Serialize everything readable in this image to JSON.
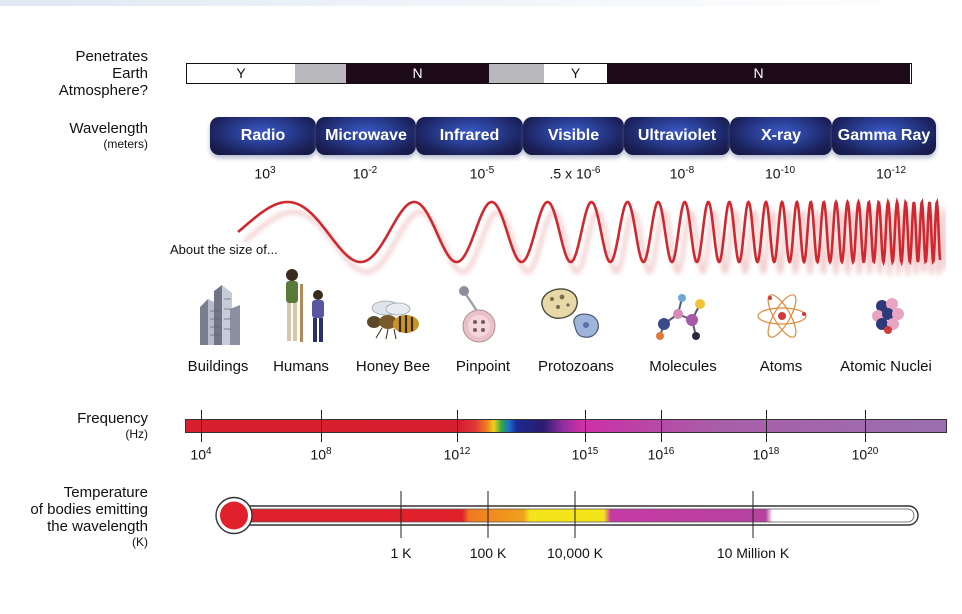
{
  "atmosphere": {
    "label_lines": [
      "Penetrates",
      "Earth",
      "Atmosphere?"
    ],
    "segments": [
      {
        "text": "Y",
        "kind": "y"
      },
      {
        "text": "",
        "kind": "g"
      },
      {
        "text": "N",
        "kind": "n"
      },
      {
        "text": "",
        "kind": "g"
      },
      {
        "text": "Y",
        "kind": "y"
      },
      {
        "text": "N",
        "kind": "n"
      }
    ]
  },
  "wavelength": {
    "label": "Wavelength",
    "unit": "(meters)",
    "bands": [
      "Radio",
      "Microwave",
      "Infrared",
      "Visible",
      "Ultraviolet",
      "X-ray",
      "Gamma Ray"
    ],
    "values": [
      {
        "base": "10",
        "exp": "3"
      },
      {
        "base": "10",
        "exp": "-2"
      },
      {
        "base": "10",
        "exp": "-5"
      },
      {
        "base": ".5 x 10",
        "exp": "-6"
      },
      {
        "base": "10",
        "exp": "-8"
      },
      {
        "base": "10",
        "exp": "-10"
      },
      {
        "base": "10",
        "exp": "-12"
      }
    ]
  },
  "size": {
    "note": "About the size of...",
    "objects": [
      "Buildings",
      "Humans",
      "Honey Bee",
      "Pinpoint",
      "Protozoans",
      "Molecules",
      "Atoms",
      "Atomic Nuclei"
    ],
    "icons": [
      "buildings-icon",
      "humans-icon",
      "honey-bee-icon",
      "pinpoint-icon",
      "protozoans-icon",
      "molecules-icon",
      "atoms-icon",
      "atomic-nuclei-icon"
    ]
  },
  "frequency": {
    "label": "Frequency",
    "unit": "(Hz)",
    "ticks": [
      {
        "base": "10",
        "exp": "4"
      },
      {
        "base": "10",
        "exp": "8"
      },
      {
        "base": "10",
        "exp": "12"
      },
      {
        "base": "10",
        "exp": "15"
      },
      {
        "base": "10",
        "exp": "16"
      },
      {
        "base": "10",
        "exp": "18"
      },
      {
        "base": "10",
        "exp": "20"
      }
    ]
  },
  "temperature": {
    "label_lines": [
      "Temperature",
      "of bodies emitting",
      "the wavelength"
    ],
    "unit": "(K)",
    "ticks": [
      "1 K",
      "100 K",
      "10,000 K",
      "10 Million K"
    ]
  },
  "colors": {
    "wave": "#d0282e",
    "band_dark": "#141639",
    "band_light": "#3a59c6"
  }
}
